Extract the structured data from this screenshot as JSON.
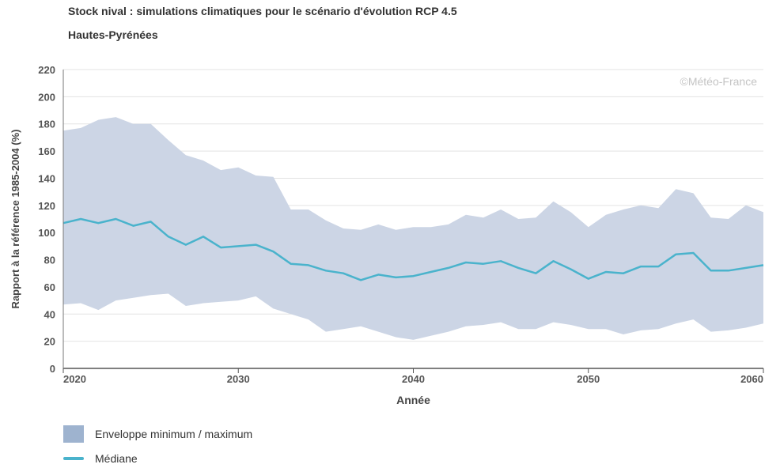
{
  "chart_data": {
    "type": "area",
    "title": "Stock nival : simulations climatiques pour le scénario d'évolution RCP 4.5",
    "subtitle": "Hautes-Pyrénées",
    "xlabel": "Année",
    "ylabel": "Rapport à la référence 1985-2004 (%)",
    "xlim": [
      2020,
      2060
    ],
    "ylim": [
      0,
      220
    ],
    "x_ticks": [
      2020,
      2030,
      2040,
      2050,
      2060
    ],
    "y_ticks": [
      0,
      20,
      40,
      60,
      80,
      100,
      120,
      140,
      160,
      180,
      200,
      220
    ],
    "grid": true,
    "legend_position": "bottom-left",
    "watermark": "©Météo-France",
    "x": [
      2020,
      2021,
      2022,
      2023,
      2024,
      2025,
      2026,
      2027,
      2028,
      2029,
      2030,
      2031,
      2032,
      2033,
      2034,
      2035,
      2036,
      2037,
      2038,
      2039,
      2040,
      2041,
      2042,
      2043,
      2044,
      2045,
      2046,
      2047,
      2048,
      2049,
      2050,
      2051,
      2052,
      2053,
      2054,
      2055,
      2056,
      2057,
      2058,
      2059,
      2060
    ],
    "series": [
      {
        "name": "Enveloppe minimum / maximum",
        "kind": "band",
        "color": "#ccd5e5",
        "legend_color": "#9eb3cf",
        "lower": [
          47,
          48,
          43,
          50,
          52,
          54,
          55,
          46,
          48,
          49,
          50,
          53,
          44,
          40,
          36,
          27,
          29,
          31,
          27,
          23,
          21,
          24,
          27,
          31,
          32,
          34,
          29,
          29,
          34,
          32,
          29,
          29,
          25,
          28,
          29,
          33,
          36,
          27,
          28,
          30,
          33
        ],
        "upper": [
          175,
          177,
          183,
          185,
          180,
          180,
          168,
          157,
          153,
          146,
          148,
          142,
          141,
          117,
          117,
          109,
          103,
          102,
          106,
          102,
          104,
          104,
          106,
          113,
          111,
          117,
          110,
          111,
          123,
          115,
          104,
          113,
          117,
          120,
          118,
          132,
          129,
          111,
          110,
          120,
          115
        ]
      },
      {
        "name": "Médiane",
        "kind": "line",
        "color": "#4ab3cc",
        "values": [
          107,
          110,
          107,
          110,
          105,
          108,
          97,
          91,
          97,
          89,
          90,
          91,
          86,
          77,
          76,
          72,
          70,
          65,
          69,
          67,
          68,
          71,
          74,
          78,
          77,
          79,
          74,
          70,
          79,
          73,
          66,
          71,
          70,
          75,
          75,
          84,
          85,
          72,
          72,
          74,
          76
        ]
      }
    ]
  }
}
